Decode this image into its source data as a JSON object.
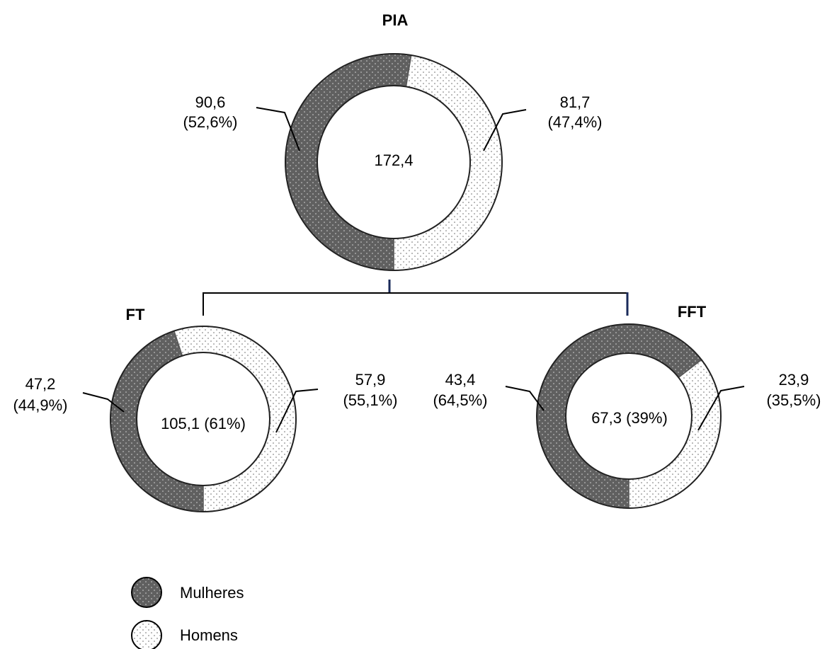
{
  "chart_data": [
    {
      "type": "pie",
      "title": "PIA",
      "center_label": "172,4",
      "slices": [
        {
          "name": "Mulheres",
          "value": 90.6,
          "label_value": "90,6",
          "label_pct": "(52,6%)"
        },
        {
          "name": "Homens",
          "value": 81.7,
          "label_value": "81,7",
          "label_pct": "(47,4%)"
        }
      ]
    },
    {
      "type": "pie",
      "title": "FT",
      "center_label": "105,1 (61%)",
      "slices": [
        {
          "name": "Mulheres",
          "value": 47.2,
          "label_value": "47,2",
          "label_pct": "(44,9%)"
        },
        {
          "name": "Homens",
          "value": 57.9,
          "label_value": "57,9",
          "label_pct": "(55,1%)"
        }
      ]
    },
    {
      "type": "pie",
      "title": "FFT",
      "center_label": "67,3 (39%)",
      "slices": [
        {
          "name": "Mulheres",
          "value": 43.4,
          "label_value": "43,4",
          "label_pct": "(64,5%)"
        },
        {
          "name": "Homens",
          "value": 23.9,
          "label_value": "23,9",
          "label_pct": "(35,5%)"
        }
      ]
    }
  ],
  "legend": [
    {
      "label": "Mulheres",
      "color": "#606060",
      "pattern": "dark-dotted"
    },
    {
      "label": "Homens",
      "color": "#ffffff",
      "pattern": "light-dotted"
    }
  ],
  "colors": {
    "mulheres": "#606060",
    "homens": "#ffffff",
    "stroke": "#555555"
  }
}
